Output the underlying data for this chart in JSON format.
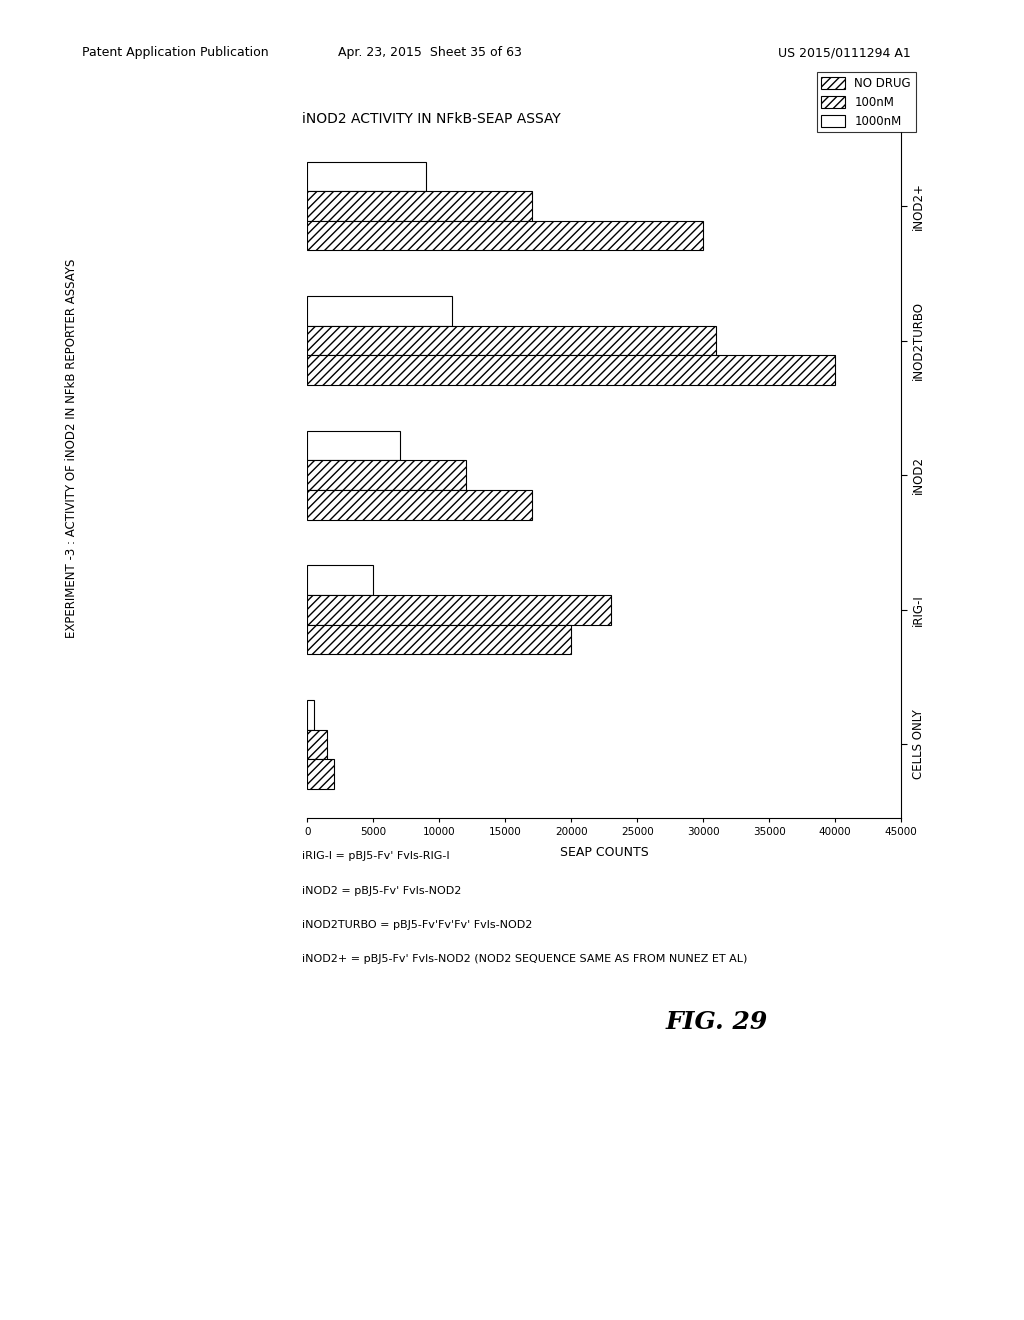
{
  "title_experiment": "EXPERIMENT -3 : ACTIVITY OF iNOD2 IN NFkB REPORTER ASSAYS",
  "title_chart": "iNOD2 ACTIVITY IN NFkB-SEAP ASSAY",
  "xlabel": "SEAP COUNTS",
  "xlim": [
    0,
    45000
  ],
  "xticks": [
    0,
    5000,
    10000,
    15000,
    20000,
    25000,
    30000,
    35000,
    40000,
    45000
  ],
  "categories": [
    "CELLS ONLY",
    "iRIG-I",
    "iNOD2",
    "iNOD2TURBO",
    "iNOD2+"
  ],
  "no_drug": [
    1500,
    23000,
    12000,
    31000,
    17000
  ],
  "drug_100nM": [
    2000,
    20000,
    17000,
    40000,
    30000
  ],
  "drug_1000nM": [
    500,
    5000,
    7000,
    11000,
    9000
  ],
  "bar_height": 0.22,
  "background_color": "#ffffff",
  "legend_labels": [
    "NO DRUG",
    "100nM",
    "1000nM"
  ],
  "footnotes": [
    "iRIG-I = pBJ5-Fv' Fvls-RIG-I",
    "iNOD2 = pBJ5-Fv' Fvls-NOD2",
    "iNOD2TURBO = pBJ5-Fv'Fv'Fv' Fvls-NOD2",
    "iNOD2+ = pBJ5-Fv' Fvls-NOD2 (NOD2 SEQUENCE SAME AS FROM NUNEZ ET AL)"
  ],
  "fig_label": "FIG. 29",
  "header_left": "Patent Application Publication",
  "header_center": "Apr. 23, 2015  Sheet 35 of 63",
  "header_right": "US 2015/0111294 A1"
}
